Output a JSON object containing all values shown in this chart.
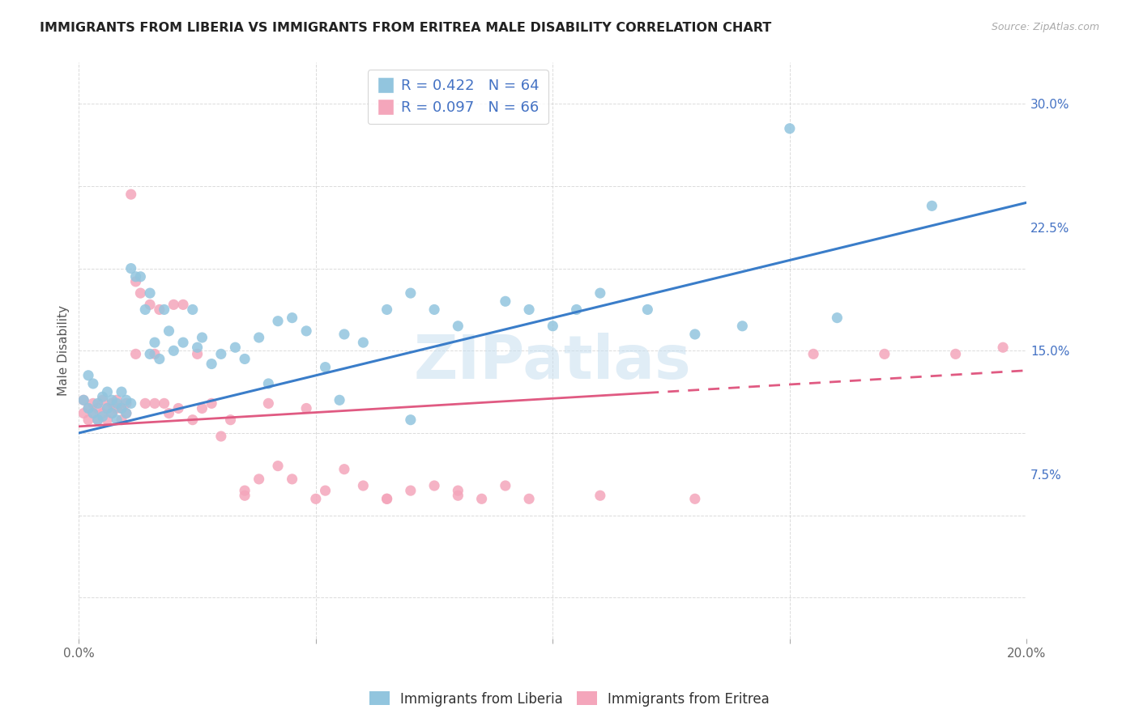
{
  "title": "IMMIGRANTS FROM LIBERIA VS IMMIGRANTS FROM ERITREA MALE DISABILITY CORRELATION CHART",
  "source": "Source: ZipAtlas.com",
  "ylabel_label": "Male Disability",
  "xlim": [
    0.0,
    0.2
  ],
  "ylim": [
    -0.025,
    0.325
  ],
  "xticks": [
    0.0,
    0.05,
    0.1,
    0.15,
    0.2
  ],
  "xtick_labels": [
    "0.0%",
    "",
    "",
    "",
    "20.0%"
  ],
  "yticks": [
    0.075,
    0.15,
    0.225,
    0.3
  ],
  "ytick_labels": [
    "7.5%",
    "15.0%",
    "22.5%",
    "30.0%"
  ],
  "liberia_R": 0.422,
  "liberia_N": 64,
  "eritrea_R": 0.097,
  "eritrea_N": 66,
  "liberia_color": "#92c5de",
  "eritrea_color": "#f4a6bb",
  "liberia_line_color": "#3a7dc9",
  "eritrea_line_color": "#e05a82",
  "liberia_line_x0": 0.0,
  "liberia_line_y0": 0.1,
  "liberia_line_x1": 0.2,
  "liberia_line_y1": 0.24,
  "eritrea_line_x0": 0.0,
  "eritrea_line_y0": 0.104,
  "eritrea_line_x1": 0.2,
  "eritrea_line_y1": 0.138,
  "eritrea_line_dashed_x0": 0.12,
  "eritrea_line_dashed_x1": 0.2,
  "liberia_scatter_x": [
    0.001,
    0.002,
    0.002,
    0.003,
    0.003,
    0.004,
    0.004,
    0.005,
    0.005,
    0.006,
    0.006,
    0.007,
    0.007,
    0.008,
    0.008,
    0.009,
    0.009,
    0.01,
    0.01,
    0.011,
    0.011,
    0.012,
    0.013,
    0.014,
    0.015,
    0.016,
    0.017,
    0.018,
    0.019,
    0.02,
    0.022,
    0.024,
    0.026,
    0.028,
    0.03,
    0.033,
    0.035,
    0.038,
    0.042,
    0.045,
    0.048,
    0.052,
    0.056,
    0.06,
    0.065,
    0.07,
    0.075,
    0.08,
    0.09,
    0.095,
    0.1,
    0.105,
    0.11,
    0.12,
    0.13,
    0.14,
    0.15,
    0.015,
    0.025,
    0.04,
    0.055,
    0.07,
    0.16,
    0.18
  ],
  "liberia_scatter_y": [
    0.12,
    0.135,
    0.115,
    0.13,
    0.112,
    0.118,
    0.108,
    0.122,
    0.11,
    0.115,
    0.125,
    0.12,
    0.112,
    0.118,
    0.108,
    0.115,
    0.125,
    0.12,
    0.112,
    0.118,
    0.2,
    0.195,
    0.195,
    0.175,
    0.185,
    0.155,
    0.145,
    0.175,
    0.162,
    0.15,
    0.155,
    0.175,
    0.158,
    0.142,
    0.148,
    0.152,
    0.145,
    0.158,
    0.168,
    0.17,
    0.162,
    0.14,
    0.16,
    0.155,
    0.175,
    0.185,
    0.175,
    0.165,
    0.18,
    0.175,
    0.165,
    0.175,
    0.185,
    0.175,
    0.16,
    0.165,
    0.285,
    0.148,
    0.152,
    0.13,
    0.12,
    0.108,
    0.17,
    0.238
  ],
  "eritrea_scatter_x": [
    0.001,
    0.001,
    0.002,
    0.002,
    0.003,
    0.003,
    0.004,
    0.004,
    0.005,
    0.005,
    0.006,
    0.006,
    0.007,
    0.007,
    0.008,
    0.008,
    0.009,
    0.009,
    0.01,
    0.01,
    0.011,
    0.012,
    0.013,
    0.014,
    0.015,
    0.016,
    0.017,
    0.018,
    0.019,
    0.02,
    0.021,
    0.022,
    0.024,
    0.026,
    0.028,
    0.03,
    0.032,
    0.035,
    0.038,
    0.04,
    0.042,
    0.045,
    0.048,
    0.052,
    0.056,
    0.06,
    0.065,
    0.07,
    0.075,
    0.08,
    0.085,
    0.09,
    0.095,
    0.012,
    0.016,
    0.025,
    0.035,
    0.05,
    0.065,
    0.08,
    0.11,
    0.13,
    0.155,
    0.17,
    0.185,
    0.195
  ],
  "eritrea_scatter_y": [
    0.12,
    0.112,
    0.115,
    0.108,
    0.118,
    0.112,
    0.115,
    0.108,
    0.12,
    0.112,
    0.115,
    0.108,
    0.118,
    0.112,
    0.115,
    0.12,
    0.108,
    0.115,
    0.118,
    0.112,
    0.245,
    0.192,
    0.185,
    0.118,
    0.178,
    0.118,
    0.175,
    0.118,
    0.112,
    0.178,
    0.115,
    0.178,
    0.108,
    0.115,
    0.118,
    0.098,
    0.108,
    0.065,
    0.072,
    0.118,
    0.08,
    0.072,
    0.115,
    0.065,
    0.078,
    0.068,
    0.06,
    0.065,
    0.068,
    0.062,
    0.06,
    0.068,
    0.06,
    0.148,
    0.148,
    0.148,
    0.062,
    0.06,
    0.06,
    0.065,
    0.062,
    0.06,
    0.148,
    0.148,
    0.148,
    0.152
  ]
}
